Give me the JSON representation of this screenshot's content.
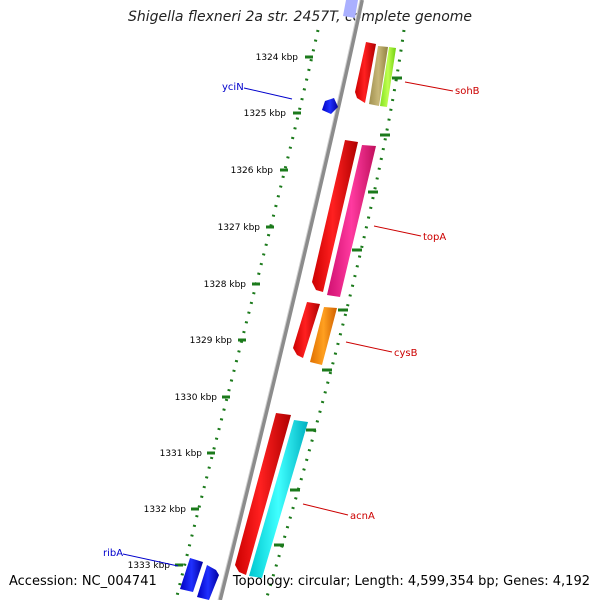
{
  "title": "Shigella flexneri 2a str. 2457T, complete genome",
  "accession": "Accession: NC_004741",
  "topology": "Topology: circular; Length: 4,599,354 bp; Genes: 4,192",
  "ticks": [
    "1324 kbp",
    "1325 kbp",
    "1326 kbp",
    "1327 kbp",
    "1328 kbp",
    "1329 kbp",
    "1330 kbp",
    "1331 kbp",
    "1332 kbp",
    "1333 kbp"
  ],
  "genes": {
    "yciN": "yciN",
    "sohB": "sohB",
    "topA": "topA",
    "cysB": "cysB",
    "acnA": "acnA",
    "ribA": "ribA"
  },
  "colors": {
    "backbone": "#8c8c8c",
    "tick": "#1b7a1b",
    "forward_label": "#cc0000",
    "reverse_label": "#0000cc",
    "cds": "#ff0000",
    "trna_like": "#ff1493",
    "orange": "#ff8c00",
    "cyan": "#00e5ee",
    "blue": "#0000ff",
    "olive": "#b0a060",
    "lime": "#99ff33"
  }
}
